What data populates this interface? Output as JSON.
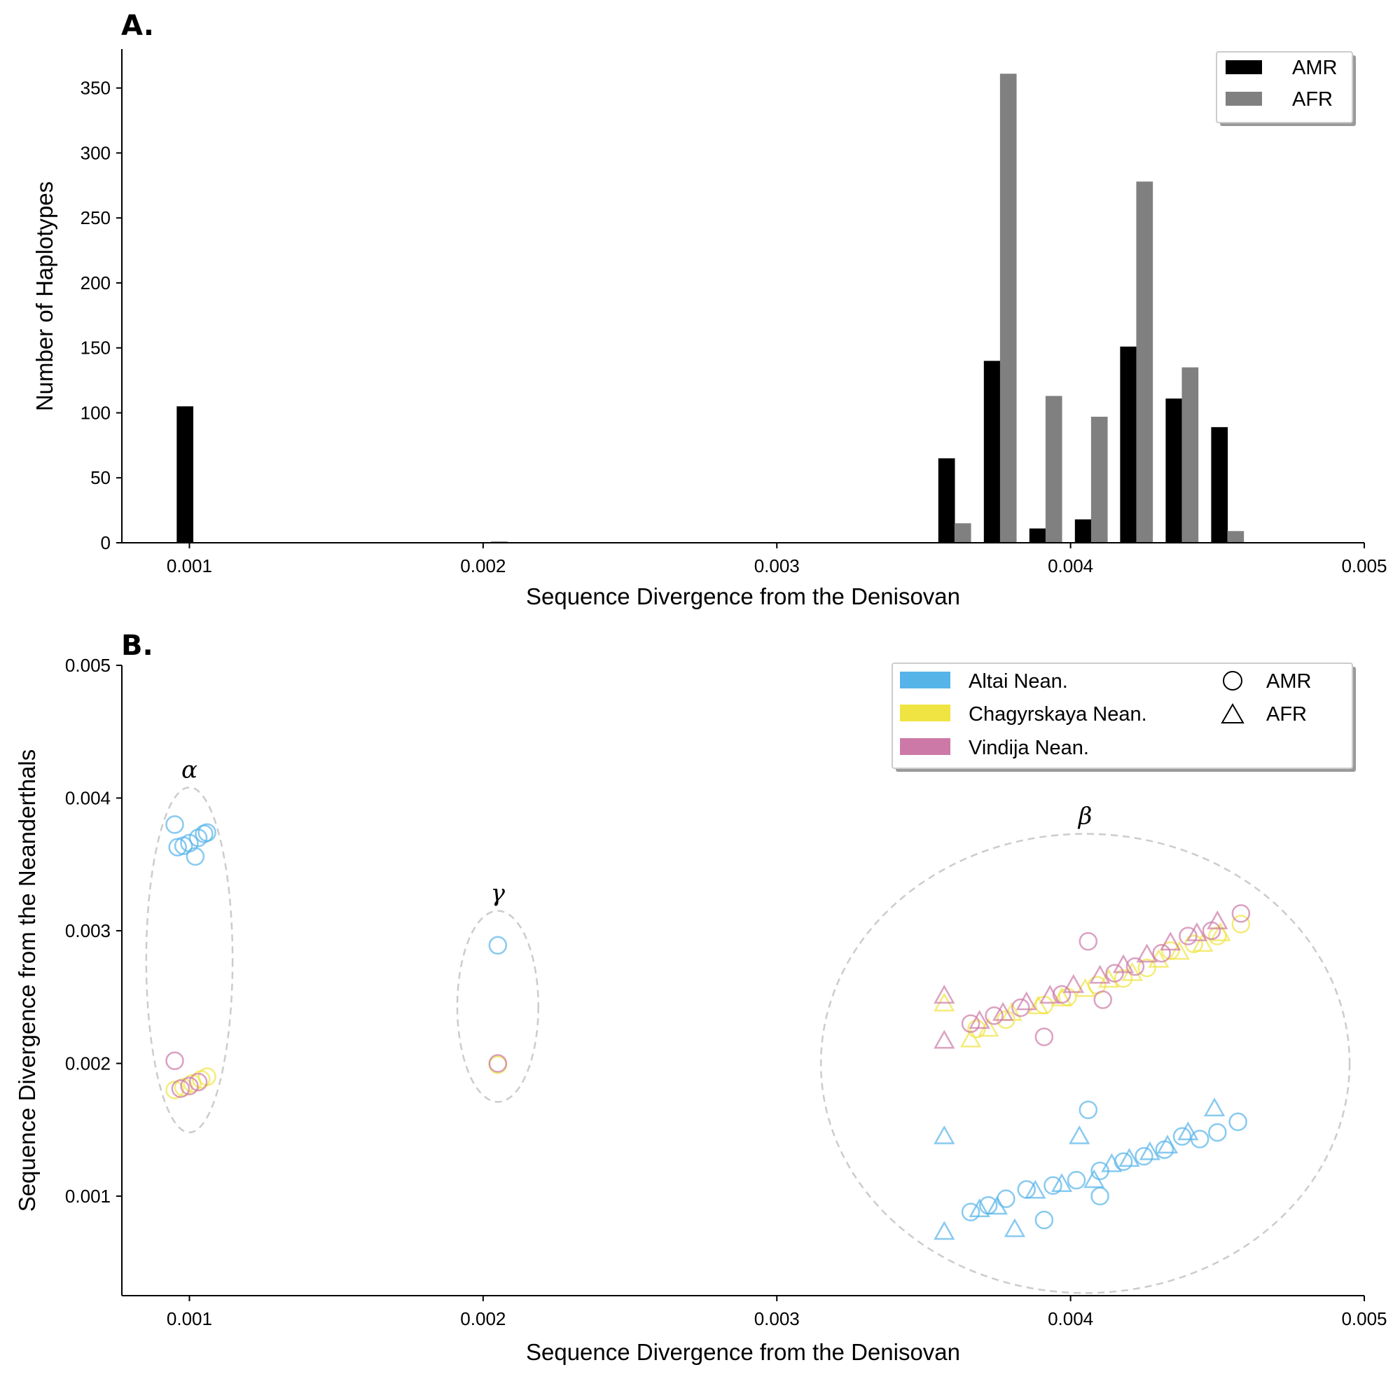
{
  "colors": {
    "amr_bar": "#000000",
    "afr_bar": "#808080",
    "altai": "#56b4e9",
    "chagyrskaya": "#f0e442",
    "vindija": "#cc79a7",
    "cluster_outline": "#cccccc"
  },
  "chart_data": [
    {
      "type": "bar",
      "panel_label": "A.",
      "xlabel": "Sequence Divergence from the Denisovan",
      "ylabel": "Number of Haplotypes",
      "xlim": [
        0.00077,
        0.005
      ],
      "ylim": [
        0,
        380
      ],
      "xticks": [
        0.001,
        0.002,
        0.003,
        0.004,
        0.005
      ],
      "xtick_labels": [
        "0.001",
        "0.002",
        "0.003",
        "0.004",
        "0.005"
      ],
      "yticks": [
        0,
        50,
        100,
        150,
        200,
        250,
        300,
        350
      ],
      "ytick_labels": [
        "0",
        "50",
        "100",
        "150",
        "200",
        "250",
        "300",
        "350"
      ],
      "bar_width": 5.65e-05,
      "legend_position": "top-right",
      "series": [
        {
          "name": "AMR",
          "x": [
            0.000985,
            0.002,
            0.003578,
            0.003733,
            0.003888,
            0.004043,
            0.004197,
            0.004352,
            0.004507
          ],
          "values": [
            105,
            0,
            65,
            140,
            11,
            18,
            151,
            111,
            89
          ]
        },
        {
          "name": "AFR",
          "x": [
            0.00104,
            0.002055,
            0.003633,
            0.003788,
            0.003943,
            0.004098,
            0.004252,
            0.004407,
            0.004562
          ],
          "values": [
            0,
            1,
            15,
            361,
            113,
            97,
            278,
            135,
            9
          ]
        }
      ]
    },
    {
      "type": "scatter",
      "panel_label": "B.",
      "xlabel": "Sequence Divergence from the Denisovan",
      "ylabel": "Sequence Divergence from the Neanderthals",
      "xlim": [
        0.00077,
        0.005
      ],
      "ylim": [
        0.00025,
        0.005
      ],
      "xticks": [
        0.001,
        0.002,
        0.003,
        0.004,
        0.005
      ],
      "xtick_labels": [
        "0.001",
        "0.002",
        "0.003",
        "0.004",
        "0.005"
      ],
      "yticks": [
        0.001,
        0.002,
        0.003,
        0.004,
        0.005
      ],
      "ytick_labels": [
        "0.001",
        "0.002",
        "0.003",
        "0.004",
        "0.005"
      ],
      "legend_position": "top-right",
      "legend": {
        "colors": [
          {
            "name": "Altai Nean.",
            "color": "#56b4e9"
          },
          {
            "name": "Chagyrskaya Nean.",
            "color": "#f0e442"
          },
          {
            "name": "Vindija Nean.",
            "color": "#cc79a7"
          }
        ],
        "markers": [
          {
            "name": "AMR",
            "marker": "circle"
          },
          {
            "name": "AFR",
            "marker": "triangle"
          }
        ]
      },
      "clusters": [
        {
          "label": "α",
          "center": [
            0.001,
            0.00278
          ],
          "radius": [
            0.000147,
            0.0013
          ]
        },
        {
          "label": "γ",
          "center": [
            0.00205,
            0.00243
          ],
          "radius": [
            0.000138,
            0.00072
          ]
        },
        {
          "label": "β",
          "center": [
            0.00405,
            0.002
          ],
          "radius": [
            0.0009,
            0.00173
          ]
        }
      ],
      "series": [
        {
          "name": "Altai Nean.",
          "marker": "circle",
          "points": [
            [
              0.00095,
              0.0038
            ],
            [
              0.00096,
              0.00363
            ],
            [
              0.00098,
              0.00364
            ],
            [
              0.001,
              0.00366
            ],
            [
              0.00102,
              0.00356
            ],
            [
              0.00103,
              0.0037
            ],
            [
              0.00105,
              0.00373
            ],
            [
              0.00106,
              0.00374
            ],
            [
              0.00205,
              0.00289
            ],
            [
              0.00366,
              0.00088
            ],
            [
              0.00372,
              0.00093
            ],
            [
              0.00378,
              0.00098
            ],
            [
              0.00385,
              0.00105
            ],
            [
              0.00391,
              0.00082
            ],
            [
              0.00394,
              0.00108
            ],
            [
              0.00402,
              0.00112
            ],
            [
              0.00406,
              0.00165
            ],
            [
              0.0041,
              0.00119
            ],
            [
              0.0041,
              0.001
            ],
            [
              0.00418,
              0.00126
            ],
            [
              0.00425,
              0.0013
            ],
            [
              0.00432,
              0.00135
            ],
            [
              0.00438,
              0.00145
            ],
            [
              0.00444,
              0.00143
            ],
            [
              0.0045,
              0.00148
            ],
            [
              0.00457,
              0.00156
            ]
          ]
        },
        {
          "name": "Altai Nean.",
          "marker": "triangle",
          "points": [
            [
              0.00357,
              0.00145
            ],
            [
              0.00357,
              0.00073
            ],
            [
              0.00369,
              0.0009
            ],
            [
              0.00375,
              0.00092
            ],
            [
              0.00381,
              0.00075
            ],
            [
              0.00388,
              0.00104
            ],
            [
              0.00397,
              0.00109
            ],
            [
              0.00403,
              0.00145
            ],
            [
              0.00408,
              0.00112
            ],
            [
              0.00414,
              0.00124
            ],
            [
              0.0042,
              0.00128
            ],
            [
              0.00427,
              0.00133
            ],
            [
              0.00433,
              0.00138
            ],
            [
              0.0044,
              0.00148
            ],
            [
              0.00449,
              0.00166
            ]
          ]
        },
        {
          "name": "Chagyrskaya Nean.",
          "marker": "circle",
          "points": [
            [
              0.00095,
              0.0018
            ],
            [
              0.00098,
              0.00182
            ],
            [
              0.00101,
              0.00185
            ],
            [
              0.00104,
              0.00188
            ],
            [
              0.00106,
              0.0019
            ],
            [
              0.00205,
              0.00199
            ],
            [
              0.00368,
              0.00226
            ],
            [
              0.00378,
              0.00233
            ],
            [
              0.00391,
              0.00244
            ],
            [
              0.00399,
              0.0025
            ],
            [
              0.00409,
              0.00259
            ],
            [
              0.00418,
              0.00264
            ],
            [
              0.00426,
              0.00272
            ],
            [
              0.00434,
              0.00285
            ],
            [
              0.00442,
              0.0029
            ],
            [
              0.0045,
              0.00296
            ],
            [
              0.00458,
              0.00305
            ]
          ]
        },
        {
          "name": "Chagyrskaya Nean.",
          "marker": "triangle",
          "points": [
            [
              0.00357,
              0.00245
            ],
            [
              0.00366,
              0.00218
            ],
            [
              0.00372,
              0.00226
            ],
            [
              0.0038,
              0.00238
            ],
            [
              0.00389,
              0.00243
            ],
            [
              0.00397,
              0.00249
            ],
            [
              0.00405,
              0.00256
            ],
            [
              0.00413,
              0.00263
            ],
            [
              0.00421,
              0.00268
            ],
            [
              0.0043,
              0.00278
            ],
            [
              0.00437,
              0.00284
            ],
            [
              0.00445,
              0.0029
            ],
            [
              0.00451,
              0.00298
            ]
          ]
        },
        {
          "name": "Vindija Nean.",
          "marker": "circle",
          "points": [
            [
              0.00095,
              0.00202
            ],
            [
              0.00097,
              0.00181
            ],
            [
              0.001,
              0.00183
            ],
            [
              0.00103,
              0.00186
            ],
            [
              0.00205,
              0.002
            ],
            [
              0.00366,
              0.0023
            ],
            [
              0.00374,
              0.00236
            ],
            [
              0.00383,
              0.00242
            ],
            [
              0.00391,
              0.0022
            ],
            [
              0.00397,
              0.00252
            ],
            [
              0.00406,
              0.00292
            ],
            [
              0.00411,
              0.00248
            ],
            [
              0.00415,
              0.00268
            ],
            [
              0.00422,
              0.00273
            ],
            [
              0.00431,
              0.00283
            ],
            [
              0.0044,
              0.00296
            ],
            [
              0.00448,
              0.003
            ],
            [
              0.00458,
              0.00313
            ]
          ]
        },
        {
          "name": "Vindija Nean.",
          "marker": "triangle",
          "points": [
            [
              0.00357,
              0.00251
            ],
            [
              0.00357,
              0.00217
            ],
            [
              0.00369,
              0.00232
            ],
            [
              0.00377,
              0.00238
            ],
            [
              0.00385,
              0.00246
            ],
            [
              0.00393,
              0.00251
            ],
            [
              0.00401,
              0.00259
            ],
            [
              0.0041,
              0.00266
            ],
            [
              0.00418,
              0.00274
            ],
            [
              0.00426,
              0.00282
            ],
            [
              0.00434,
              0.00291
            ],
            [
              0.00443,
              0.00298
            ],
            [
              0.0045,
              0.00307
            ]
          ]
        }
      ]
    }
  ]
}
